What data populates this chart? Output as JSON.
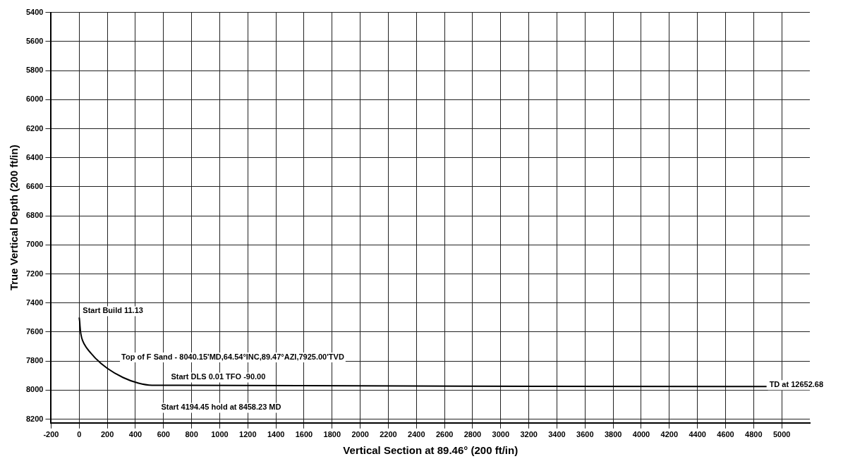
{
  "chart_data": {
    "type": "line",
    "xlabel": "Vertical Section at 89.46° (200 ft/in)",
    "ylabel": "True Vertical Depth (200 ft/in)",
    "x": [
      0,
      24,
      105,
      200,
      312,
      422,
      518,
      4892
    ],
    "series": [
      {
        "color": "#000000",
        "values": [
          7500,
          7659,
          7769,
          7850,
          7913,
          7952,
          7966,
          7975
        ]
      }
    ],
    "xlim": [
      -200,
      5200
    ],
    "ylim": [
      8225,
      5400
    ],
    "xticks": [
      -200,
      0,
      200,
      400,
      600,
      800,
      1000,
      1200,
      1400,
      1600,
      1800,
      2000,
      2200,
      2400,
      2600,
      2800,
      3000,
      3200,
      3400,
      3600,
      3800,
      4000,
      4200,
      4400,
      4600,
      4800,
      5000
    ],
    "yticks": [
      5400,
      5600,
      5800,
      6000,
      6200,
      6400,
      6600,
      6800,
      7000,
      7200,
      7400,
      7600,
      7800,
      8000,
      8200
    ],
    "grid": true,
    "legend": false,
    "marker": "none",
    "line_style": "solid",
    "annotations": [
      {
        "text": "Start Build 11.13",
        "x": 0,
        "y": 7500
      },
      {
        "text": "Top of F Sand - 8040.15'MD,64.54°INC,89.47°AZI,7925.00'TVD",
        "x": 330,
        "y": 7925
      },
      {
        "text": "Start DLS 0.01 TFO -90.00",
        "x": 518,
        "y": 7966
      },
      {
        "text": "Start 4194.45 hold at 8458.23 MD",
        "x": 518,
        "y": 7966
      },
      {
        "text": "TD at 12652.68",
        "x": 4892,
        "y": 7975
      }
    ]
  }
}
